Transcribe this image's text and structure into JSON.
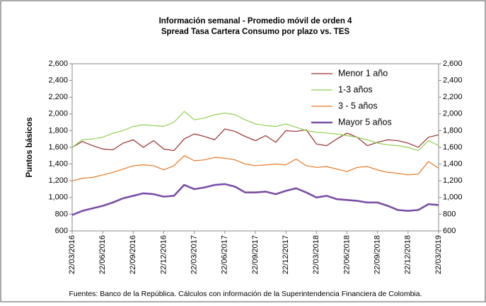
{
  "chart_data": {
    "type": "line",
    "title": "Información semanal - Promedio móvil de orden 4",
    "subtitle": "Spread Tasa Cartera Consumo por plazo vs. TES",
    "y_label": "Puntos básicos",
    "source": "Fuentes: Banco de la República. Cálculos con información de la Superintendencia Financiera de Colombia.",
    "categories": [
      "22/03/2016",
      null,
      null,
      "22/06/2016",
      null,
      null,
      "22/09/2016",
      null,
      null,
      "22/12/2016",
      null,
      null,
      "22/03/2017",
      null,
      null,
      "22/06/2017",
      null,
      null,
      "22/09/2017",
      null,
      null,
      "22/12/2017",
      null,
      null,
      "22/03/2018",
      null,
      null,
      "22/06/2018",
      null,
      null,
      "22/09/2018",
      null,
      null,
      "22/12/2018",
      null,
      null,
      "22/03/2019"
    ],
    "series": [
      {
        "name": "Menor 1 año",
        "color": "#9b2d2d",
        "values": [
          1600,
          1670,
          1620,
          1580,
          1570,
          1650,
          1690,
          1600,
          1680,
          1580,
          1560,
          1700,
          1760,
          1730,
          1690,
          1820,
          1790,
          1730,
          1680,
          1740,
          1660,
          1800,
          1790,
          1810,
          1640,
          1620,
          1700,
          1770,
          1720,
          1620,
          1660,
          1690,
          1680,
          1650,
          1600,
          1720,
          1750
        ]
      },
      {
        "name": "1-3 años",
        "color": "#8fd14f",
        "values": [
          1600,
          1690,
          1700,
          1720,
          1770,
          1800,
          1850,
          1870,
          1860,
          1850,
          1900,
          2030,
          1930,
          1950,
          1990,
          2010,
          1990,
          1930,
          1880,
          1860,
          1850,
          1880,
          1840,
          1800,
          1780,
          1770,
          1760,
          1740,
          1720,
          1690,
          1650,
          1630,
          1620,
          1600,
          1560,
          1680,
          1620
        ]
      },
      {
        "name": "3 - 5 años",
        "color": "#e87722",
        "values": [
          1200,
          1230,
          1240,
          1270,
          1300,
          1340,
          1380,
          1390,
          1380,
          1330,
          1380,
          1500,
          1440,
          1450,
          1480,
          1470,
          1450,
          1400,
          1380,
          1390,
          1400,
          1390,
          1460,
          1380,
          1360,
          1370,
          1340,
          1310,
          1360,
          1370,
          1330,
          1300,
          1290,
          1270,
          1280,
          1430,
          1350
        ]
      },
      {
        "name": "Mayor 5 años",
        "color": "#7b4fa6",
        "values": [
          790,
          840,
          870,
          900,
          940,
          990,
          1020,
          1050,
          1040,
          1010,
          1020,
          1150,
          1100,
          1120,
          1150,
          1160,
          1130,
          1060,
          1060,
          1070,
          1040,
          1080,
          1110,
          1060,
          1000,
          1020,
          980,
          970,
          960,
          940,
          940,
          900,
          850,
          840,
          850,
          920,
          910
        ]
      }
    ],
    "ylim": [
      600,
      2600
    ],
    "yticks": [
      {
        "value": 600,
        "label": "600"
      },
      {
        "value": 800,
        "label": "800"
      },
      {
        "value": 1000,
        "label": "1,000"
      },
      {
        "value": 1200,
        "label": "1,200"
      },
      {
        "value": 1400,
        "label": "1,400"
      },
      {
        "value": 1600,
        "label": "1,600"
      },
      {
        "value": 1800,
        "label": "1,800"
      },
      {
        "value": 2000,
        "label": "2,000"
      },
      {
        "value": 2200,
        "label": "2,200"
      },
      {
        "value": 2400,
        "label": "2,400"
      },
      {
        "value": 2600,
        "label": "2,600"
      }
    ],
    "grid": false
  }
}
